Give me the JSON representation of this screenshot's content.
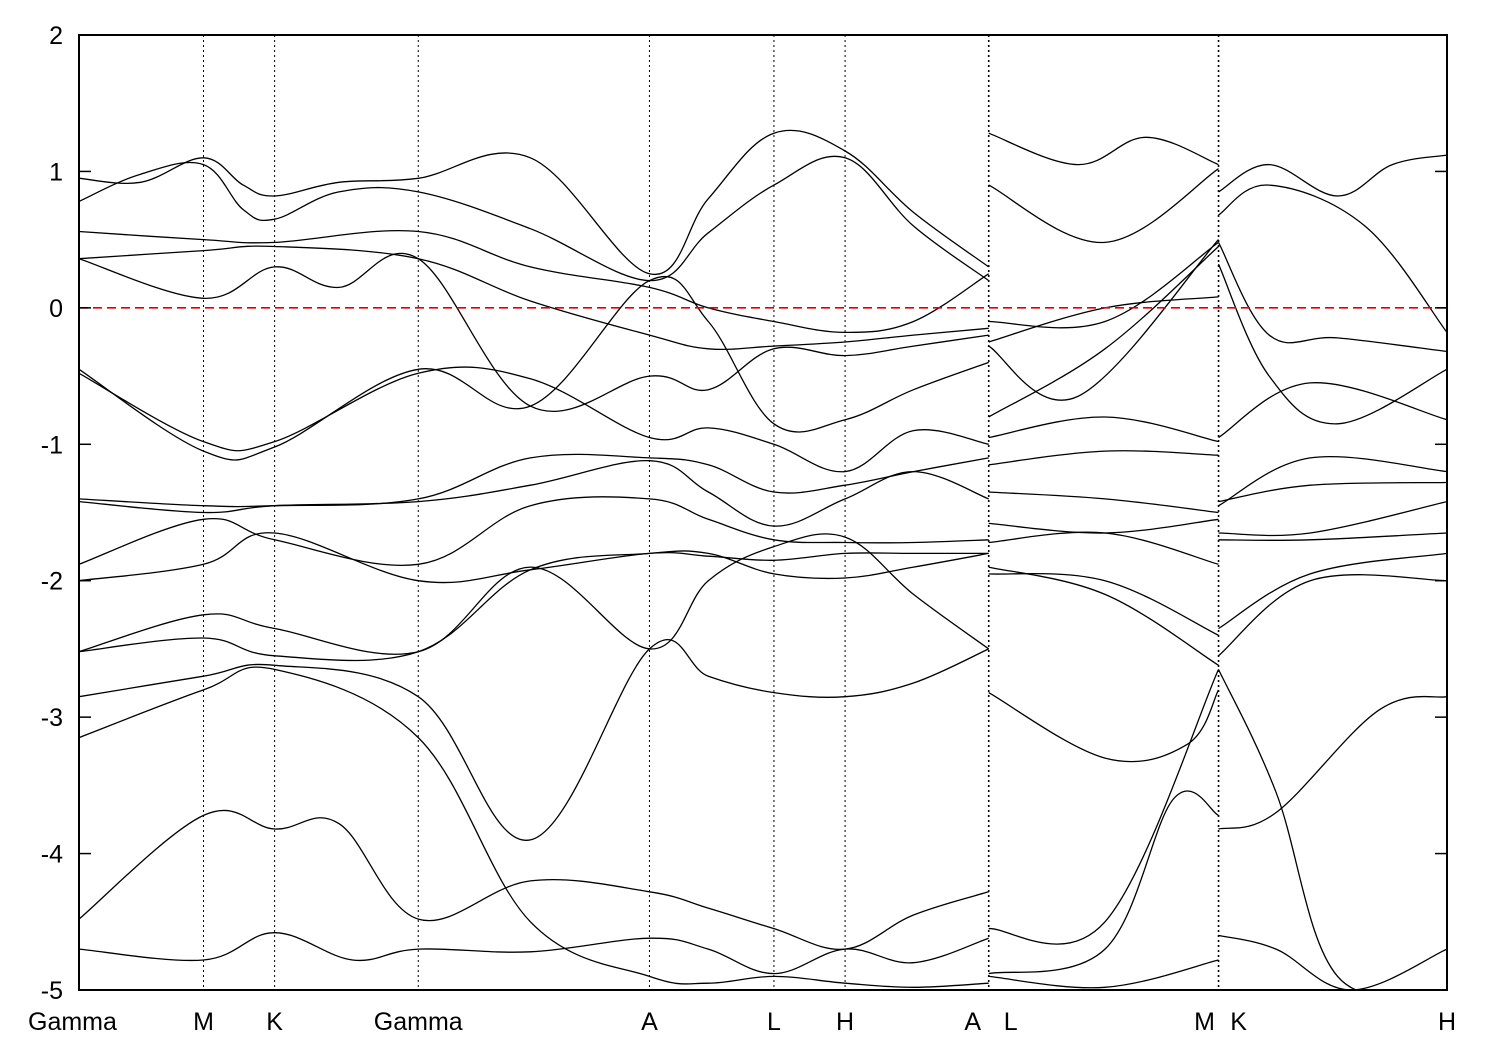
{
  "chart_data": {
    "type": "line",
    "title": "",
    "xlabel": "",
    "ylabel": "",
    "ylim": [
      -5,
      2
    ],
    "yticks": [
      -5,
      -4,
      -3,
      -2,
      -1,
      0,
      1,
      2
    ],
    "ytick_labels": [
      "-5",
      "-4",
      "-3",
      "-2",
      "-1",
      "0",
      "1",
      "2"
    ],
    "xlim": [
      0,
      10
    ],
    "kpoints": [
      {
        "label": "Gamma",
        "x": 0.0
      },
      {
        "label": "M",
        "x": 0.91
      },
      {
        "label": "K",
        "x": 1.43
      },
      {
        "label": "Gamma",
        "x": 2.48
      },
      {
        "label": "A",
        "x": 4.17
      },
      {
        "label": "L",
        "x": 5.08
      },
      {
        "label": "H",
        "x": 5.6
      },
      {
        "label": "A",
        "x": 6.65
      },
      {
        "label": "L",
        "x": 6.65
      },
      {
        "label": "M",
        "x": 8.33
      },
      {
        "label": "K",
        "x": 8.33
      },
      {
        "label": "H",
        "x": 10.0
      }
    ],
    "path_breaks": [
      6.65,
      8.33
    ],
    "fermi_level": 0,
    "grid": false,
    "legend": "none",
    "colors": {
      "bands": "#000000",
      "fermi": "#e00000",
      "kpath": "#000000"
    },
    "series": [
      {
        "x": [
          0,
          0.45,
          0.91,
          1.2,
          1.43,
          1.9,
          2.48,
          3.3,
          4.17,
          4.6,
          5.08,
          5.6,
          6.1,
          6.65
        ],
        "values": [
          0.95,
          0.92,
          1.1,
          0.9,
          0.82,
          0.92,
          0.95,
          1.1,
          0.25,
          0.8,
          1.28,
          1.15,
          0.7,
          0.3
        ]
      },
      {
        "x": [
          0,
          0.45,
          0.91,
          1.2,
          1.43,
          1.9,
          2.48,
          3.3,
          4.17,
          4.6,
          5.08,
          5.6,
          6.1,
          6.65
        ],
        "values": [
          0.78,
          0.98,
          1.05,
          0.72,
          0.65,
          0.85,
          0.85,
          0.58,
          0.2,
          0.55,
          0.9,
          1.1,
          0.6,
          0.2
        ]
      },
      {
        "x": [
          0,
          0.91,
          1.43,
          2.48,
          3.3,
          4.17,
          4.6,
          5.08,
          5.6,
          6.1,
          6.65
        ],
        "values": [
          0.56,
          0.5,
          0.48,
          0.56,
          0.3,
          0.15,
          0.0,
          -0.1,
          -0.18,
          -0.1,
          0.25
        ]
      },
      {
        "x": [
          0,
          0.91,
          1.43,
          2.48,
          3.3,
          4.17,
          4.6,
          5.08,
          5.6,
          6.1,
          6.65
        ],
        "values": [
          0.36,
          0.42,
          0.45,
          0.36,
          0.05,
          -0.2,
          -0.3,
          -0.28,
          -0.25,
          -0.2,
          -0.15
        ]
      },
      {
        "x": [
          0,
          0.91,
          1.43,
          1.9,
          2.48,
          3.3,
          4.17,
          4.6,
          5.08,
          5.6,
          6.1,
          6.65
        ],
        "values": [
          0.36,
          0.07,
          0.3,
          0.15,
          0.36,
          -0.72,
          -0.5,
          -0.6,
          -0.3,
          -0.35,
          -0.28,
          -0.2
        ]
      },
      {
        "x": [
          0,
          0.91,
          1.43,
          2.48,
          3.3,
          4.17,
          4.6,
          5.08,
          5.6,
          6.1,
          6.65
        ],
        "values": [
          -0.45,
          -1.05,
          -1.02,
          -0.45,
          -0.72,
          0.2,
          -0.1,
          -0.85,
          -0.82,
          -0.6,
          -0.4
        ]
      },
      {
        "x": [
          0,
          0.91,
          1.43,
          2.48,
          3.3,
          4.17,
          4.6,
          5.08,
          5.6,
          6.1,
          6.65
        ],
        "values": [
          -0.48,
          -0.98,
          -0.98,
          -0.48,
          -0.52,
          -0.95,
          -0.88,
          -1.0,
          -1.2,
          -0.9,
          -1.0
        ]
      },
      {
        "x": [
          0,
          0.91,
          1.43,
          2.48,
          3.3,
          4.17,
          4.6,
          5.08,
          5.6,
          6.1,
          6.65
        ],
        "values": [
          -1.4,
          -1.45,
          -1.45,
          -1.4,
          -1.1,
          -1.1,
          -1.15,
          -1.35,
          -1.3,
          -1.2,
          -1.1
        ]
      },
      {
        "x": [
          0,
          0.91,
          1.43,
          2.48,
          3.3,
          4.17,
          4.6,
          5.08,
          5.6,
          6.1,
          6.65
        ],
        "values": [
          -1.42,
          -1.5,
          -1.45,
          -1.42,
          -1.3,
          -1.12,
          -1.35,
          -1.6,
          -1.4,
          -1.2,
          -1.4
        ]
      },
      {
        "x": [
          0,
          0.91,
          1.43,
          2.48,
          3.3,
          4.17,
          4.6,
          5.08,
          5.6,
          6.1,
          6.65
        ],
        "values": [
          -1.88,
          -1.55,
          -1.7,
          -1.88,
          -1.45,
          -1.4,
          -1.55,
          -1.7,
          -1.72,
          -1.72,
          -1.7
        ]
      },
      {
        "x": [
          0,
          0.91,
          1.43,
          2.48,
          3.3,
          4.17,
          4.6,
          5.08,
          5.6,
          6.1,
          6.65
        ],
        "values": [
          -2.0,
          -1.88,
          -1.65,
          -2.0,
          -1.92,
          -1.8,
          -1.82,
          -1.85,
          -1.8,
          -1.8,
          -1.8
        ]
      },
      {
        "x": [
          0,
          0.91,
          1.43,
          2.48,
          3.3,
          4.17,
          4.6,
          5.08,
          5.6,
          6.1,
          6.65
        ],
        "values": [
          -2.52,
          -2.25,
          -2.35,
          -2.52,
          -1.9,
          -2.5,
          -2.0,
          -1.75,
          -1.68,
          -2.1,
          -2.5
        ]
      },
      {
        "x": [
          0,
          0.91,
          1.43,
          2.48,
          3.3,
          4.17,
          4.6,
          5.08,
          5.6,
          6.1,
          6.65
        ],
        "values": [
          -2.52,
          -2.42,
          -2.55,
          -2.52,
          -1.92,
          -1.8,
          -1.8,
          -1.95,
          -1.98,
          -1.9,
          -1.8
        ]
      },
      {
        "x": [
          0,
          0.91,
          1.43,
          2.48,
          3.3,
          4.17,
          4.6,
          5.08,
          5.6,
          6.1,
          6.65
        ],
        "values": [
          -2.85,
          -2.7,
          -2.62,
          -2.85,
          -3.9,
          -2.5,
          -2.7,
          -2.82,
          -2.85,
          -2.75,
          -2.5
        ]
      },
      {
        "x": [
          0,
          0.91,
          1.43,
          2.48,
          3.3,
          4.17,
          4.6,
          5.08,
          5.6,
          6.1,
          6.65
        ],
        "values": [
          -3.15,
          -2.8,
          -2.65,
          -3.15,
          -4.5,
          -4.9,
          -4.95,
          -4.9,
          -4.95,
          -4.98,
          -4.95
        ]
      },
      {
        "x": [
          0,
          0.91,
          1.43,
          1.9,
          2.48,
          3.3,
          4.17,
          4.6,
          5.08,
          5.6,
          6.1,
          6.65
        ],
        "values": [
          -4.48,
          -3.72,
          -3.82,
          -3.78,
          -4.48,
          -4.2,
          -4.28,
          -4.4,
          -4.55,
          -4.7,
          -4.45,
          -4.28
        ]
      },
      {
        "x": [
          0,
          0.91,
          1.43,
          2.0,
          2.48,
          3.3,
          4.17,
          4.6,
          5.08,
          5.6,
          6.1,
          6.65
        ],
        "values": [
          -4.7,
          -4.78,
          -4.58,
          -4.78,
          -4.7,
          -4.72,
          -4.62,
          -4.7,
          -4.88,
          -4.7,
          -4.8,
          -4.62
        ]
      },
      {
        "x": [
          6.65,
          7.3,
          7.8,
          8.33
        ],
        "values": [
          1.28,
          1.05,
          1.25,
          1.05
        ]
      },
      {
        "x": [
          6.65,
          7.5,
          8.33
        ],
        "values": [
          0.9,
          0.48,
          1.02
        ]
      },
      {
        "x": [
          6.65,
          7.5,
          8.33
        ],
        "values": [
          -0.1,
          -0.1,
          0.48
        ]
      },
      {
        "x": [
          6.65,
          7.5,
          8.33
        ],
        "values": [
          -0.25,
          0.0,
          0.08
        ]
      },
      {
        "x": [
          6.65,
          7.3,
          8.33
        ],
        "values": [
          -0.28,
          -0.65,
          0.5
        ]
      },
      {
        "x": [
          6.65,
          7.5,
          8.33
        ],
        "values": [
          -0.8,
          -0.3,
          0.45
        ]
      },
      {
        "x": [
          6.65,
          7.5,
          8.33
        ],
        "values": [
          -0.95,
          -0.8,
          -0.98
        ]
      },
      {
        "x": [
          6.65,
          7.5,
          8.33
        ],
        "values": [
          -1.15,
          -1.05,
          -1.08
        ]
      },
      {
        "x": [
          6.65,
          7.5,
          8.33
        ],
        "values": [
          -1.35,
          -1.4,
          -1.5
        ]
      },
      {
        "x": [
          6.65,
          7.5,
          8.33
        ],
        "values": [
          -1.58,
          -1.65,
          -1.55
        ]
      },
      {
        "x": [
          6.65,
          7.5,
          8.33
        ],
        "values": [
          -1.72,
          -1.65,
          -1.88
        ]
      },
      {
        "x": [
          6.65,
          7.5,
          8.33
        ],
        "values": [
          -1.95,
          -2.0,
          -2.4
        ]
      },
      {
        "x": [
          6.65,
          7.5,
          8.33
        ],
        "values": [
          -1.9,
          -2.1,
          -2.62
        ]
      },
      {
        "x": [
          6.65,
          7.5,
          8.1,
          8.33
        ],
        "values": [
          -2.82,
          -3.3,
          -3.2,
          -2.8
        ]
      },
      {
        "x": [
          6.65,
          7.5,
          8.33
        ],
        "values": [
          -4.55,
          -4.5,
          -2.65
        ]
      },
      {
        "x": [
          6.65,
          7.5,
          8.0,
          8.33
        ],
        "values": [
          -4.88,
          -4.7,
          -3.6,
          -3.72
        ]
      },
      {
        "x": [
          6.65,
          7.5,
          8.33
        ],
        "values": [
          -4.9,
          -4.98,
          -4.78
        ]
      },
      {
        "x": [
          8.33,
          8.7,
          9.2,
          9.6,
          10.0
        ],
        "values": [
          0.85,
          1.05,
          0.82,
          1.05,
          1.12
        ]
      },
      {
        "x": [
          8.33,
          8.7,
          9.4,
          10.0
        ],
        "values": [
          0.68,
          0.9,
          0.6,
          -0.18
        ]
      },
      {
        "x": [
          8.33,
          8.7,
          9.2,
          10.0
        ],
        "values": [
          0.48,
          -0.2,
          -0.22,
          -0.32
        ]
      },
      {
        "x": [
          8.33,
          8.7,
          9.2,
          10.0
        ],
        "values": [
          0.32,
          -0.5,
          -0.85,
          -0.45
        ]
      },
      {
        "x": [
          8.33,
          9.0,
          10.0
        ],
        "values": [
          -0.95,
          -0.55,
          -0.82
        ]
      },
      {
        "x": [
          8.33,
          9.0,
          10.0
        ],
        "values": [
          -1.45,
          -1.1,
          -1.2
        ]
      },
      {
        "x": [
          8.33,
          9.0,
          10.0
        ],
        "values": [
          -1.42,
          -1.3,
          -1.28
        ]
      },
      {
        "x": [
          8.33,
          9.0,
          10.0
        ],
        "values": [
          -1.65,
          -1.65,
          -1.42
        ]
      },
      {
        "x": [
          8.33,
          9.0,
          10.0
        ],
        "values": [
          -1.7,
          -1.7,
          -1.65
        ]
      },
      {
        "x": [
          8.33,
          9.0,
          10.0
        ],
        "values": [
          -2.35,
          -1.95,
          -1.8
        ]
      },
      {
        "x": [
          8.33,
          9.0,
          10.0
        ],
        "values": [
          -2.55,
          -2.0,
          -2.0
        ]
      },
      {
        "x": [
          8.33,
          8.75,
          9.2,
          10.0
        ],
        "values": [
          -2.65,
          -3.55,
          -4.9,
          -5.0
        ]
      },
      {
        "x": [
          8.33,
          8.75,
          9.5,
          10.0
        ],
        "values": [
          -3.82,
          -3.7,
          -2.95,
          -2.85
        ]
      },
      {
        "x": [
          8.33,
          8.75,
          9.3,
          10.0
        ],
        "values": [
          -4.6,
          -4.7,
          -5.0,
          -4.7
        ]
      }
    ]
  }
}
